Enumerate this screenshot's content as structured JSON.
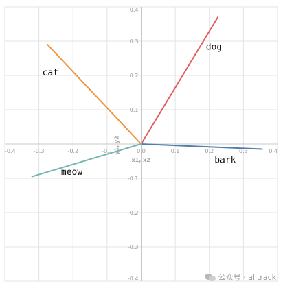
{
  "chart_data": {
    "type": "line",
    "title": "",
    "xlabel": "x1, x2",
    "ylabel": "y1, y2",
    "xlim": [
      -0.4,
      0.4
    ],
    "ylim": [
      -0.4,
      0.4
    ],
    "x_ticks": [
      "-0.4",
      "-0.3",
      "-0.2",
      "-0.1",
      "0.0",
      "0.1",
      "0.2",
      "0.3",
      "0.4"
    ],
    "y_ticks": [
      "0.4",
      "0.3",
      "0.2",
      "0.1",
      "0.0",
      "-0.1",
      "-0.2",
      "-0.3",
      "-0.4"
    ],
    "grid": true,
    "series": [
      {
        "name": "cat",
        "color": "#f0923a",
        "x": [
          0,
          -0.275
        ],
        "y": [
          0,
          0.29
        ]
      },
      {
        "name": "dog",
        "color": "#e05d5d",
        "x": [
          0,
          0.225
        ],
        "y": [
          0,
          0.37
        ]
      },
      {
        "name": "bark",
        "color": "#4f7fae",
        "x": [
          0,
          0.355
        ],
        "y": [
          0,
          -0.015
        ]
      },
      {
        "name": "meow",
        "color": "#76b7b2",
        "x": [
          0,
          -0.32
        ],
        "y": [
          0,
          -0.095
        ]
      }
    ],
    "annotations": [
      {
        "text": "cat",
        "x": -0.29,
        "y": 0.2
      },
      {
        "text": "dog",
        "x": 0.19,
        "y": 0.275
      },
      {
        "text": "bark",
        "x": 0.215,
        "y": -0.055
      },
      {
        "text": "meow",
        "x": -0.235,
        "y": -0.09
      }
    ]
  },
  "watermark": {
    "text": "公众号 · alitrack",
    "icon": "wechat-icon"
  }
}
